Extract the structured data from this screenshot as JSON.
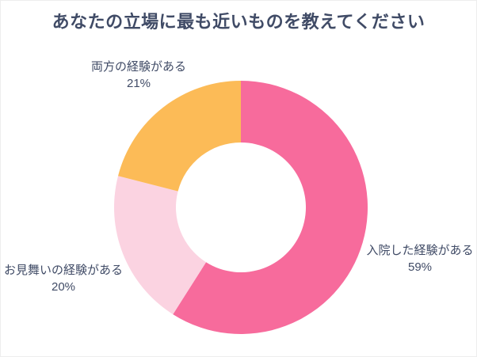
{
  "chart_data": {
    "type": "pie",
    "variant": "donut",
    "title": "あなたの立場に最も近いものを教えてください",
    "direction": "clockwise",
    "start_angle_deg": 0,
    "inner_radius_ratio": 0.51,
    "legend_position": "none",
    "labels_position": "outside",
    "unit": "%",
    "segments": [
      {
        "key": "hospitalized",
        "label": "入院した経験がある",
        "value": 59,
        "value_label": "59%",
        "color": "#f76b9c"
      },
      {
        "key": "visit",
        "label": "お見舞いの経験がある",
        "value": 20,
        "value_label": "20%",
        "color": "#fbd3e1"
      },
      {
        "key": "both",
        "label": "両方の経験がある",
        "value": 21,
        "value_label": "21%",
        "color": "#fcbb57"
      }
    ]
  },
  "theme": {
    "title_color": "#404b66",
    "label_color": "#404b66",
    "background": "#ffffff"
  }
}
